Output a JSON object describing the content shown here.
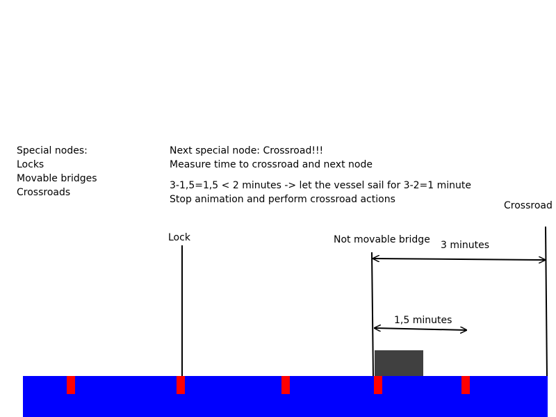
{
  "legend": {
    "title": "Special nodes:",
    "items": [
      "Locks",
      "Movable bridges",
      "Crossroads"
    ]
  },
  "notes": {
    "line1": "Next special node: Crossroad!!!",
    "line2": "Measure time to crossroad and next node",
    "line3": "3-1,5=1,5 < 2 minutes -> let the vessel sail for 3-2=1 minute",
    "line4": "Stop animation and perform crossroad actions"
  },
  "nodes": {
    "lock": "Lock",
    "bridge": "Not movable bridge",
    "crossroad": "Crossroad"
  },
  "durations": {
    "to_crossroad": "3 minutes",
    "to_next_node": "1,5 minutes"
  },
  "colors": {
    "water": "#0000FF",
    "node_marker": "#FF0000",
    "vessel": "#404040",
    "line": "#000000"
  }
}
